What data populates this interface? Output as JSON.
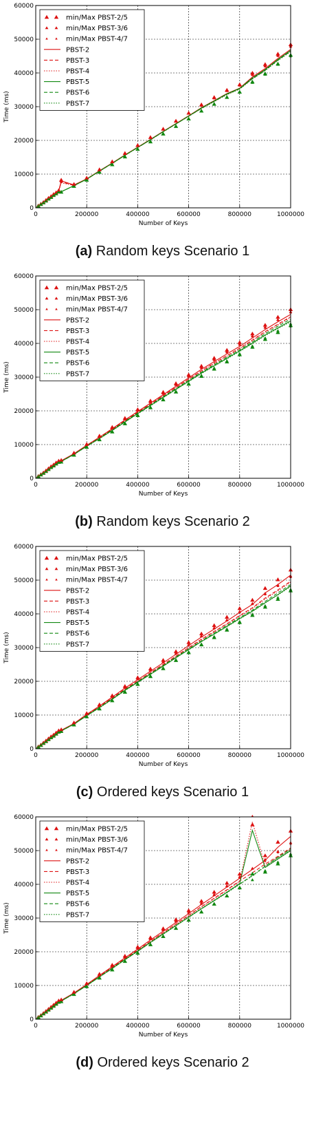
{
  "figure": {
    "panels": [
      {
        "letter": "(a)",
        "caption": "Random keys Scenario 1"
      },
      {
        "letter": "(b)",
        "caption": "Random keys Scenario 2"
      },
      {
        "letter": "(c)",
        "caption": "Ordered keys Scenario 1"
      },
      {
        "letter": "(d)",
        "caption": "Ordered keys Scenario 2"
      }
    ]
  },
  "colors": {
    "red": "#dd1111",
    "green": "#118811"
  },
  "chart_data": [
    {
      "type": "line",
      "title": "",
      "xlabel": "Number of Keys",
      "ylabel": "Time (ms)",
      "xlim": [
        0,
        1000000
      ],
      "ylim": [
        0,
        60000
      ],
      "xticks": [
        "0",
        "200000",
        "400000",
        "600000",
        "800000",
        "1000000"
      ],
      "yticks": [
        "0",
        "10000",
        "20000",
        "30000",
        "40000",
        "50000",
        "60000"
      ],
      "grid": true,
      "legend_position": "top-left",
      "legend": [
        "min/Max PBST-2/5",
        "min/Max PBST-3/6",
        "min/Max PBST-4/7",
        "PBST-2",
        "PBST-3",
        "PBST-4",
        "PBST-5",
        "PBST-6",
        "PBST-7"
      ],
      "x": [
        10000,
        20000,
        30000,
        40000,
        50000,
        60000,
        70000,
        80000,
        90000,
        100000,
        150000,
        200000,
        250000,
        300000,
        350000,
        400000,
        450000,
        500000,
        550000,
        600000,
        650000,
        700000,
        750000,
        800000,
        850000,
        900000,
        950000,
        1000000
      ],
      "series": [
        {
          "name": "PBST-2",
          "values": [
            600,
            1100,
            1600,
            2200,
            2800,
            3300,
            3900,
            4400,
            5000,
            8000,
            6800,
            8600,
            11000,
            13300,
            15700,
            18000,
            20300,
            22700,
            25000,
            27300,
            29700,
            31800,
            33900,
            35500,
            38800,
            41300,
            44300,
            47000
          ]
        },
        {
          "name": "PBST-3",
          "values": [
            580,
            1080,
            1580,
            2150,
            2750,
            3250,
            3850,
            4350,
            4950,
            7700,
            6700,
            8500,
            10900,
            13200,
            15600,
            17900,
            20200,
            22600,
            24900,
            27200,
            29500,
            31600,
            33700,
            35300,
            38400,
            40900,
            43900,
            46600
          ]
        },
        {
          "name": "PBST-4",
          "values": [
            560,
            1060,
            1560,
            2120,
            2720,
            3220,
            3820,
            4320,
            4920,
            7400,
            6650,
            8450,
            10850,
            13150,
            15550,
            17850,
            20150,
            22550,
            24850,
            27150,
            29450,
            31500,
            33600,
            35200,
            38200,
            40700,
            43700,
            46300
          ]
        },
        {
          "name": "PBST-5",
          "values": [
            550,
            1050,
            1550,
            2100,
            2700,
            3200,
            3800,
            4300,
            4900,
            4800,
            6600,
            8500,
            10900,
            13200,
            15600,
            17900,
            20200,
            22600,
            24900,
            27200,
            29600,
            31700,
            33800,
            35400,
            38500,
            41000,
            44000,
            46700
          ]
        },
        {
          "name": "PBST-6",
          "values": [
            540,
            1040,
            1540,
            2090,
            2690,
            3190,
            3790,
            4290,
            4890,
            4780,
            6580,
            8480,
            10880,
            13180,
            15580,
            17880,
            20180,
            22580,
            24880,
            27180,
            29500,
            31600,
            33700,
            35300,
            38300,
            40800,
            43800,
            46500
          ]
        },
        {
          "name": "PBST-7",
          "values": [
            530,
            1030,
            1530,
            2080,
            2680,
            3180,
            3780,
            4280,
            4880,
            4760,
            6560,
            8460,
            10860,
            13160,
            15560,
            17860,
            20160,
            22560,
            24860,
            27160,
            29450,
            31500,
            33600,
            35200,
            38200,
            40700,
            43700,
            46300
          ]
        }
      ]
    },
    {
      "type": "line",
      "title": "",
      "xlabel": "Number of Keys",
      "ylabel": "Time (ms)",
      "xlim": [
        0,
        1000000
      ],
      "ylim": [
        0,
        60000
      ],
      "xticks": [
        "0",
        "200000",
        "400000",
        "600000",
        "800000",
        "1000000"
      ],
      "yticks": [
        "0",
        "10000",
        "20000",
        "30000",
        "40000",
        "50000",
        "60000"
      ],
      "grid": true,
      "legend_position": "top-left",
      "legend": [
        "min/Max PBST-2/5",
        "min/Max PBST-3/6",
        "min/Max PBST-4/7",
        "PBST-2",
        "PBST-3",
        "PBST-4",
        "PBST-5",
        "PBST-6",
        "PBST-7"
      ],
      "x": [
        10000,
        20000,
        30000,
        40000,
        50000,
        60000,
        70000,
        80000,
        90000,
        100000,
        150000,
        200000,
        250000,
        300000,
        350000,
        400000,
        450000,
        500000,
        550000,
        600000,
        650000,
        700000,
        750000,
        800000,
        850000,
        900000,
        950000,
        1000000
      ],
      "series": [
        {
          "name": "PBST-2",
          "values": [
            600,
            1100,
            1600,
            2200,
            2800,
            3400,
            3900,
            4500,
            5000,
            5200,
            7300,
            9800,
            12200,
            14700,
            17300,
            19800,
            22300,
            24800,
            27300,
            29800,
            32300,
            34600,
            36900,
            39100,
            41600,
            44100,
            46400,
            48600
          ]
        },
        {
          "name": "PBST-3",
          "values": [
            580,
            1080,
            1580,
            2150,
            2750,
            3350,
            3850,
            4450,
            4950,
            5100,
            7200,
            9650,
            12000,
            14500,
            17050,
            19550,
            22000,
            24500,
            27000,
            29400,
            31900,
            34200,
            36400,
            38600,
            41000,
            43500,
            45700,
            47900
          ]
        },
        {
          "name": "PBST-4",
          "values": [
            560,
            1060,
            1560,
            2120,
            2720,
            3320,
            3820,
            4420,
            4920,
            5050,
            7150,
            9600,
            11950,
            14400,
            16950,
            19450,
            21900,
            24400,
            26850,
            29250,
            31700,
            34000,
            36200,
            38400,
            40800,
            43300,
            45500,
            47700
          ]
        },
        {
          "name": "PBST-5",
          "values": [
            550,
            1050,
            1550,
            2100,
            2700,
            3300,
            3800,
            4400,
            4900,
            5000,
            7100,
            9500,
            11800,
            14200,
            16700,
            19200,
            21600,
            24000,
            26400,
            28800,
            31200,
            33400,
            35600,
            37800,
            40100,
            42500,
            44600,
            46700
          ]
        },
        {
          "name": "PBST-6",
          "values": [
            540,
            1040,
            1540,
            2090,
            2690,
            3290,
            3790,
            4390,
            4890,
            4980,
            7080,
            9550,
            11900,
            14300,
            16850,
            19350,
            21750,
            24200,
            26600,
            29000,
            31450,
            33700,
            35900,
            38100,
            40450,
            42900,
            45100,
            47200
          ]
        },
        {
          "name": "PBST-7",
          "values": [
            530,
            1030,
            1530,
            2080,
            2680,
            3280,
            3780,
            4380,
            4880,
            4960,
            7060,
            9450,
            11750,
            14150,
            16650,
            19100,
            21500,
            23900,
            26300,
            28650,
            31050,
            33250,
            35450,
            37600,
            39900,
            42300,
            44400,
            46400
          ]
        }
      ]
    },
    {
      "type": "line",
      "title": "",
      "xlabel": "Number of Keys",
      "ylabel": "Time (ms)",
      "xlim": [
        0,
        1000000
      ],
      "ylim": [
        0,
        60000
      ],
      "xticks": [
        "0",
        "200000",
        "400000",
        "600000",
        "800000",
        "1000000"
      ],
      "yticks": [
        "0",
        "10000",
        "20000",
        "30000",
        "40000",
        "50000",
        "60000"
      ],
      "grid": true,
      "legend_position": "top-left",
      "legend": [
        "min/Max PBST-2/5",
        "min/Max PBST-3/6",
        "min/Max PBST-4/7",
        "PBST-2",
        "PBST-3",
        "PBST-4",
        "PBST-5",
        "PBST-6",
        "PBST-7"
      ],
      "x": [
        10000,
        20000,
        30000,
        40000,
        50000,
        60000,
        70000,
        80000,
        90000,
        100000,
        150000,
        200000,
        250000,
        300000,
        350000,
        400000,
        450000,
        500000,
        550000,
        600000,
        650000,
        700000,
        750000,
        800000,
        850000,
        900000,
        950000,
        1000000
      ],
      "series": [
        {
          "name": "PBST-2",
          "values": [
            600,
            1100,
            1700,
            2300,
            2900,
            3500,
            4000,
            4600,
            5200,
            5500,
            7500,
            10200,
            12700,
            15300,
            18000,
            20500,
            23000,
            25500,
            28000,
            30600,
            33100,
            35500,
            37900,
            40400,
            42800,
            46200,
            48700,
            51500
          ]
        },
        {
          "name": "PBST-3",
          "values": [
            580,
            1080,
            1680,
            2250,
            2850,
            3450,
            3950,
            4550,
            5150,
            5400,
            7400,
            10000,
            12500,
            15000,
            17700,
            20100,
            22600,
            25000,
            27500,
            30000,
            32500,
            34800,
            37100,
            39500,
            41800,
            44700,
            47100,
            49700
          ]
        },
        {
          "name": "PBST-4",
          "values": [
            560,
            1060,
            1660,
            2220,
            2820,
            3420,
            3920,
            4520,
            5120,
            5350,
            7350,
            9950,
            12400,
            14900,
            17550,
            19950,
            22450,
            24850,
            27350,
            29850,
            32300,
            34600,
            36900,
            39300,
            41600,
            44400,
            46800,
            49400
          ]
        },
        {
          "name": "PBST-5",
          "values": [
            550,
            1050,
            1650,
            2200,
            2800,
            3400,
            3900,
            4500,
            5100,
            5300,
            7300,
            9800,
            12200,
            14700,
            17300,
            19700,
            22100,
            24500,
            27000,
            29400,
            31800,
            34000,
            36300,
            38600,
            40800,
            43300,
            45700,
            48300
          ]
        },
        {
          "name": "PBST-6",
          "values": [
            540,
            1040,
            1640,
            2190,
            2790,
            3390,
            3890,
            4490,
            5090,
            5280,
            7280,
            9850,
            12300,
            14800,
            17450,
            19850,
            22300,
            24700,
            27200,
            29600,
            32000,
            34300,
            36600,
            38900,
            41100,
            43700,
            46200,
            48700
          ]
        },
        {
          "name": "PBST-7",
          "values": [
            530,
            1030,
            1630,
            2180,
            2780,
            3380,
            3880,
            4480,
            5080,
            5260,
            7260,
            9750,
            12150,
            14650,
            17250,
            19650,
            22050,
            24450,
            26950,
            29350,
            31750,
            33950,
            36200,
            38500,
            40700,
            43200,
            45600,
            48100
          ]
        }
      ]
    },
    {
      "type": "line",
      "title": "",
      "xlabel": "Number of Keys",
      "ylabel": "Time (ms)",
      "xlim": [
        0,
        1000000
      ],
      "ylim": [
        0,
        60000
      ],
      "xticks": [
        "0",
        "200000",
        "400000",
        "600000",
        "800000",
        "1000000"
      ],
      "yticks": [
        "0",
        "10000",
        "20000",
        "30000",
        "40000",
        "50000",
        "60000"
      ],
      "grid": true,
      "legend_position": "top-left",
      "legend": [
        "min/Max PBST-2/5",
        "min/Max PBST-3/6",
        "min/Max PBST-4/7",
        "PBST-2",
        "PBST-3",
        "PBST-4",
        "PBST-5",
        "PBST-6",
        "PBST-7"
      ],
      "x": [
        10000,
        20000,
        30000,
        40000,
        50000,
        60000,
        70000,
        80000,
        90000,
        100000,
        150000,
        200000,
        250000,
        300000,
        350000,
        400000,
        450000,
        500000,
        550000,
        600000,
        650000,
        700000,
        750000,
        800000,
        850000,
        900000,
        950000,
        1000000
      ],
      "series": [
        {
          "name": "PBST-2",
          "values": [
            600,
            1100,
            1700,
            2300,
            2900,
            3500,
            4100,
            4700,
            5300,
            5600,
            7800,
            10300,
            13000,
            15600,
            18200,
            20800,
            23500,
            26100,
            28700,
            31300,
            34000,
            36600,
            39200,
            41800,
            44400,
            47100,
            51000,
            54200
          ]
        },
        {
          "name": "PBST-3",
          "values": [
            580,
            1080,
            1680,
            2250,
            2850,
            3450,
            4050,
            4650,
            5250,
            5500,
            7700,
            10150,
            12800,
            15350,
            17950,
            20500,
            23150,
            25700,
            28250,
            30800,
            33400,
            35900,
            38400,
            41000,
            43400,
            46000,
            48300,
            50800
          ]
        },
        {
          "name": "PBST-4",
          "values": [
            560,
            1060,
            1660,
            2220,
            2820,
            3420,
            4020,
            4620,
            5220,
            5450,
            7650,
            10100,
            12700,
            15250,
            17850,
            20400,
            23000,
            25550,
            28100,
            30650,
            33200,
            35700,
            38200,
            40800,
            58500,
            45500,
            48000,
            50500
          ]
        },
        {
          "name": "PBST-5",
          "values": [
            550,
            1050,
            1650,
            2200,
            2800,
            3400,
            4000,
            4600,
            5200,
            5400,
            7600,
            10000,
            12600,
            15100,
            17700,
            20200,
            22800,
            25300,
            27800,
            30300,
            32800,
            35200,
            37700,
            40200,
            56000,
            45000,
            47500,
            50000
          ]
        },
        {
          "name": "PBST-6",
          "values": [
            540,
            1040,
            1640,
            2190,
            2790,
            3390,
            3990,
            4590,
            5190,
            5380,
            7580,
            9980,
            12550,
            15050,
            17650,
            20150,
            22750,
            25250,
            27750,
            30250,
            32750,
            35150,
            37600,
            40100,
            42600,
            45400,
            48000,
            50500
          ]
        },
        {
          "name": "PBST-7",
          "values": [
            530,
            1030,
            1630,
            2180,
            2780,
            3380,
            3980,
            4580,
            5180,
            5360,
            7560,
            9960,
            12500,
            15000,
            17600,
            20100,
            22700,
            25200,
            27700,
            30200,
            32700,
            35100,
            37500,
            40000,
            42500,
            45200,
            47700,
            50200
          ]
        }
      ]
    }
  ]
}
